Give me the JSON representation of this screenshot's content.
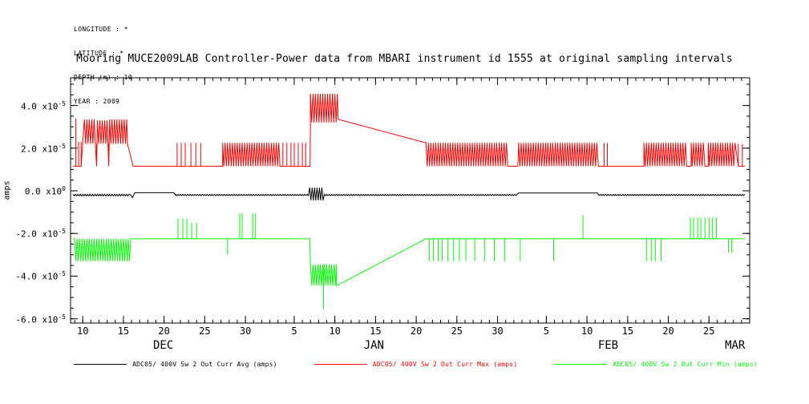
{
  "meta": {
    "lines": [
      "LONGITUDE : *",
      "LATITUDE : *",
      "DEPTH (m) : 10",
      "YEAR : 2009"
    ]
  },
  "colors": {
    "background": "#ffffff",
    "frame": "#000000",
    "avg": "#000000",
    "max": "#ff0000",
    "min": "#00ff00"
  },
  "legend": [
    {
      "label": "ADC05/ 400V Sw 2 Out Curr Avg (amps)",
      "series": "avg",
      "color": "#000000"
    },
    {
      "label": "ADC05/ 400V Sw 2 Out Curr Max (amps)",
      "series": "max",
      "color": "#ff0000"
    },
    {
      "label": "ADC05/ 400V Sw 2 Out Curr Min (amps)",
      "series": "min",
      "color": "#00ff00"
    }
  ],
  "chart_data": {
    "type": "line",
    "title": "Mooring MUCE2009LAB Controller-Power data from MBARI instrument id 1555 at original sampling intervals",
    "ylabel": "amps",
    "grid": false,
    "legend_position": "bottom",
    "x_axis": {
      "unit": "days (day 1 = Dec 1 2008)",
      "xlim": [
        8.5,
        92
      ],
      "minor_tick_every_days": 1,
      "major_ticks": [
        {
          "day": 10,
          "label": "10"
        },
        {
          "day": 15,
          "label": "15"
        },
        {
          "day": 20,
          "label": "20"
        },
        {
          "day": 25,
          "label": "25"
        },
        {
          "day": 30,
          "label": "30"
        },
        {
          "day": 36,
          "label": "5"
        },
        {
          "day": 41,
          "label": "10"
        },
        {
          "day": 46,
          "label": "15"
        },
        {
          "day": 51,
          "label": "20"
        },
        {
          "day": 56,
          "label": "25"
        },
        {
          "day": 61,
          "label": "30"
        },
        {
          "day": 67,
          "label": "5"
        },
        {
          "day": 72,
          "label": "10"
        },
        {
          "day": 77,
          "label": "15"
        },
        {
          "day": 82,
          "label": "20"
        },
        {
          "day": 87,
          "label": "25"
        }
      ],
      "months": [
        {
          "day": 19.9,
          "label": "DEC"
        },
        {
          "day": 45.8,
          "label": "JAN"
        },
        {
          "day": 74.6,
          "label": "FEB"
        },
        {
          "day": 90.2,
          "label": "MAR"
        }
      ]
    },
    "y_axis": {
      "ylim": [
        -6.2e-05,
        5.3e-05
      ],
      "minor_tick_step": 5e-06,
      "exp_prefix": "x10",
      "major_ticks": [
        {
          "value": 4e-05,
          "mantissa": "4.0",
          "exp": "-5"
        },
        {
          "value": 2e-05,
          "mantissa": "2.0",
          "exp": "-5"
        },
        {
          "value": 0,
          "mantissa": "0.0",
          "exp": "0"
        },
        {
          "value": -2e-05,
          "mantissa": "-2.0",
          "exp": "-5"
        },
        {
          "value": -4e-05,
          "mantissa": "-4.0",
          "exp": "-5"
        },
        {
          "value": -6e-05,
          "mantissa": "-6.0",
          "exp": "-5"
        }
      ]
    },
    "series": [
      {
        "name": "ADC05/ 400V Sw 2 Out Curr Avg (amps)",
        "key": "avg",
        "color": "#000000",
        "segments": [
          {
            "t": "band",
            "x0": 8.8,
            "x1": 15.8,
            "lo": -2.4e-06,
            "hi": -1.6e-06
          },
          {
            "t": "line",
            "pts": [
              [
                15.9,
                -2e-06
              ],
              [
                16.1,
                -3.2e-06
              ],
              [
                16.4,
                -9e-07
              ],
              [
                21.2,
                -9e-07
              ],
              [
                21.4,
                -2e-06
              ]
            ]
          },
          {
            "t": "band",
            "x0": 21.4,
            "x1": 37.8,
            "lo": -2.2e-06,
            "hi": -1.7e-06
          },
          {
            "t": "band",
            "x0": 37.9,
            "x1": 39.6,
            "lo": -4.5e-06,
            "hi": 1.5e-06
          },
          {
            "t": "band",
            "x0": 39.7,
            "x1": 63.5,
            "lo": -2.2e-06,
            "hi": -1.7e-06
          },
          {
            "t": "line",
            "pts": [
              [
                63.6,
                -1e-06
              ],
              [
                73.3,
                -1e-06
              ],
              [
                73.4,
                -2e-06
              ]
            ]
          },
          {
            "t": "band",
            "x0": 73.4,
            "x1": 91.4,
            "lo": -2.2e-06,
            "hi": -1.7e-06
          }
        ]
      },
      {
        "name": "ADC05/ 400V Sw 2 Out Curr Max (amps)",
        "key": "max",
        "color": "#ff0000",
        "segments": [
          {
            "t": "line",
            "pts": [
              [
                8.8,
                1.15e-05
              ],
              [
                9.0,
                1.15e-05
              ]
            ]
          },
          {
            "t": "spikes",
            "base": 1.15e-05,
            "peak": 3.4e-05,
            "xs": [
              9.15
            ]
          },
          {
            "t": "spikes",
            "base": 1.15e-05,
            "peak": 2.3e-05,
            "xs": [
              9.5,
              9.8
            ]
          },
          {
            "t": "band",
            "x0": 10.2,
            "x1": 11.6,
            "lo": 2.2e-05,
            "hi": 3.35e-05
          },
          {
            "t": "spikes",
            "base": 1.15e-05,
            "peak": 2.2e-05,
            "xs": [
              11.7
            ]
          },
          {
            "t": "band",
            "x0": 11.8,
            "x1": 13.1,
            "lo": 2.2e-05,
            "hi": 3.3e-05
          },
          {
            "t": "spikes",
            "base": 1.15e-05,
            "peak": 2.2e-05,
            "xs": [
              13.2
            ]
          },
          {
            "t": "band",
            "x0": 13.3,
            "x1": 15.4,
            "lo": 2.2e-05,
            "hi": 3.35e-05
          },
          {
            "t": "line",
            "pts": [
              [
                15.5,
                2.2e-05
              ],
              [
                16.2,
                1.15e-05
              ],
              [
                21.3,
                1.15e-05
              ]
            ]
          },
          {
            "t": "spikes",
            "base": 1.15e-05,
            "peak": 2.25e-05,
            "xs": [
              21.6,
              22.1,
              22.6,
              23.3,
              23.9,
              24.5
            ]
          },
          {
            "t": "line",
            "pts": [
              [
                24.7,
                1.15e-05
              ],
              [
                27.2,
                1.15e-05
              ]
            ]
          },
          {
            "t": "band",
            "x0": 27.2,
            "x1": 34.3,
            "lo": 1.15e-05,
            "hi": 2.25e-05
          },
          {
            "t": "spikes",
            "base": 1.15e-05,
            "peak": 2.25e-05,
            "xs": [
              34.6,
              35.1,
              35.6,
              36.0,
              36.5,
              37.0,
              37.4
            ]
          },
          {
            "t": "line",
            "pts": [
              [
                37.7,
                1.15e-05
              ],
              [
                37.95,
                1.15e-05
              ],
              [
                38.0,
                3.2e-05
              ]
            ]
          },
          {
            "t": "band",
            "x0": 38.0,
            "x1": 41.4,
            "lo": 3.2e-05,
            "hi": 4.55e-05
          },
          {
            "t": "line",
            "pts": [
              [
                41.4,
                3.35e-05
              ],
              [
                52.2,
                2.25e-05
              ]
            ]
          },
          {
            "t": "band",
            "x0": 52.2,
            "x1": 62.3,
            "lo": 1.15e-05,
            "hi": 2.25e-05
          },
          {
            "t": "line",
            "pts": [
              [
                62.4,
                1.15e-05
              ],
              [
                63.5,
                1.15e-05
              ]
            ]
          },
          {
            "t": "band",
            "x0": 63.6,
            "x1": 73.3,
            "lo": 1.15e-05,
            "hi": 2.25e-05
          },
          {
            "t": "line",
            "pts": [
              [
                73.4,
                1.15e-05
              ],
              [
                73.9,
                1.15e-05
              ]
            ]
          },
          {
            "t": "spikes",
            "base": 1.15e-05,
            "peak": 2.25e-05,
            "xs": [
              74.1,
              74.5
            ]
          },
          {
            "t": "line",
            "pts": [
              [
                74.7,
                1.15e-05
              ],
              [
                79.0,
                1.15e-05
              ]
            ]
          },
          {
            "t": "band",
            "x0": 79.0,
            "x1": 84.3,
            "lo": 1.15e-05,
            "hi": 2.25e-05
          },
          {
            "t": "line",
            "pts": [
              [
                84.4,
                1.15e-05
              ],
              [
                84.8,
                1.15e-05
              ]
            ]
          },
          {
            "t": "band",
            "x0": 84.8,
            "x1": 86.4,
            "lo": 1.15e-05,
            "hi": 2.25e-05
          },
          {
            "t": "line",
            "pts": [
              [
                86.5,
                1.15e-05
              ],
              [
                86.9,
                1.15e-05
              ]
            ]
          },
          {
            "t": "band",
            "x0": 86.9,
            "x1": 90.2,
            "lo": 1.15e-05,
            "hi": 2.25e-05
          },
          {
            "t": "spikes",
            "base": 1.15e-05,
            "peak": 2.2e-05,
            "xs": [
              90.6,
              91.1
            ]
          },
          {
            "t": "line",
            "pts": [
              [
                91.4,
                1.15e-05
              ]
            ]
          }
        ]
      },
      {
        "name": "ADC05/ 400V Sw 2 Out Curr Min (amps)",
        "key": "min",
        "color": "#00ff00",
        "segments": [
          {
            "t": "line",
            "pts": [
              [
                8.8,
                -2.25e-05
              ],
              [
                9.0,
                -2.25e-05
              ]
            ]
          },
          {
            "t": "band",
            "x0": 9.0,
            "x1": 15.8,
            "lo": -3.3e-05,
            "hi": -2.25e-05
          },
          {
            "t": "line",
            "pts": [
              [
                15.9,
                -2.25e-05
              ],
              [
                21.4,
                -2.25e-05
              ]
            ]
          },
          {
            "t": "spikes",
            "base": -2.25e-05,
            "peak": -1.3e-05,
            "xs": [
              21.7,
              22.3,
              22.8
            ]
          },
          {
            "t": "spikes",
            "base": -2.25e-05,
            "peak": -1.5e-05,
            "xs": [
              23.4,
              24.0
            ]
          },
          {
            "t": "line",
            "pts": [
              [
                24.2,
                -2.25e-05
              ],
              [
                27.6,
                -2.25e-05
              ]
            ]
          },
          {
            "t": "spikes",
            "base": -2.25e-05,
            "peak": -3e-05,
            "xs": [
              27.8
            ]
          },
          {
            "t": "spikes",
            "base": -2.25e-05,
            "peak": -1.05e-05,
            "xs": [
              29.3,
              29.6,
              30.9,
              31.2
            ]
          },
          {
            "t": "line",
            "pts": [
              [
                31.4,
                -2.25e-05
              ],
              [
                37.9,
                -2.25e-05
              ],
              [
                38.0,
                -3.45e-05
              ]
            ]
          },
          {
            "t": "band",
            "x0": 38.0,
            "x1": 39.5,
            "lo": -4.45e-05,
            "hi": -3.45e-05
          },
          {
            "t": "spikes",
            "base": -4.45e-05,
            "peak": -5.55e-05,
            "xs": [
              39.6
            ]
          },
          {
            "t": "band",
            "x0": 39.7,
            "x1": 41.2,
            "lo": -4.45e-05,
            "hi": -3.45e-05
          },
          {
            "t": "line",
            "pts": [
              [
                41.2,
                -4.45e-05
              ],
              [
                52.2,
                -2.25e-05
              ]
            ]
          },
          {
            "t": "spikes",
            "base": -2.25e-05,
            "peak": -3.3e-05,
            "xs": [
              52.6,
              53.1,
              53.7,
              54.2,
              54.9,
              55.6,
              56.3,
              57.1,
              58.2,
              59.4,
              60.6,
              61.9
            ]
          },
          {
            "t": "spikes",
            "base": -2.25e-05,
            "peak": -3.3e-05,
            "xs": [
              63.8
            ]
          },
          {
            "t": "spikes",
            "base": -2.25e-05,
            "peak": -3.3e-05,
            "xs": [
              67.9
            ]
          },
          {
            "t": "spikes",
            "base": -2.25e-05,
            "peak": -1.15e-05,
            "xs": [
              71.5
            ]
          },
          {
            "t": "spikes",
            "base": -2.25e-05,
            "peak": -3.3e-05,
            "xs": [
              79.3,
              79.9,
              80.4,
              81.1
            ]
          },
          {
            "t": "spikes",
            "base": -2.25e-05,
            "peak": -1.25e-05,
            "xs": [
              84.7,
              85.1,
              85.6,
              86.0,
              86.5,
              87.0,
              87.4,
              87.9
            ]
          },
          {
            "t": "spikes",
            "base": -2.25e-05,
            "peak": -2.9e-05,
            "xs": [
              89.4,
              89.8
            ]
          },
          {
            "t": "line",
            "pts": [
              [
                91.4,
                -2.25e-05
              ]
            ]
          }
        ]
      }
    ]
  }
}
